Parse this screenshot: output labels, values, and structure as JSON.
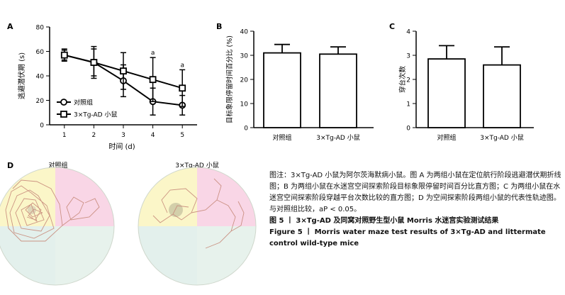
{
  "panels": {
    "a": "A",
    "b": "B",
    "c": "C",
    "d": "D"
  },
  "chart_data": [
    {
      "type": "line",
      "panel": "A",
      "xlabel": "时间 (d)",
      "ylabel": "逃避潜伏期 (s)",
      "x": [
        1,
        2,
        3,
        4,
        5
      ],
      "xlim": [
        0.5,
        5.5
      ],
      "ylim": [
        0,
        80
      ],
      "yticks": [
        0,
        20,
        40,
        60,
        80
      ],
      "series": [
        {
          "name": "对照组",
          "marker": "circle",
          "values": [
            57,
            51,
            36,
            19,
            16
          ],
          "error": [
            4,
            11,
            13,
            11,
            8
          ]
        },
        {
          "name": "3×Tg-AD 小鼠",
          "marker": "square",
          "values": [
            57,
            51,
            44,
            37,
            30
          ],
          "error": [
            5,
            13,
            15,
            18,
            15
          ]
        }
      ],
      "annotations": [
        {
          "x": 4,
          "text": "a"
        },
        {
          "x": 5,
          "text": "a"
        }
      ],
      "legend": "bottom-left",
      "grid": false
    },
    {
      "type": "bar",
      "panel": "B",
      "ylabel": "目标象限停留时间百分比 (%)",
      "categories": [
        "对照组",
        "3×Tg-AD 小鼠"
      ],
      "values": [
        31,
        30.5
      ],
      "error": [
        3.5,
        3
      ],
      "ylim": [
        0,
        40
      ],
      "yticks": [
        0,
        10,
        20,
        30,
        40
      ]
    },
    {
      "type": "bar",
      "panel": "C",
      "ylabel": "穿台次数",
      "categories": [
        "对照组",
        "3×Tg-AD 小鼠"
      ],
      "values": [
        2.85,
        2.6
      ],
      "error": [
        0.55,
        0.75
      ],
      "ylim": [
        0,
        4
      ],
      "yticks": [
        0,
        1,
        2,
        3,
        4
      ]
    }
  ],
  "track_titles": [
    "对照组",
    "3×Tg-AD 小鼠"
  ],
  "quadrant_colors": [
    "#fbf6c8",
    "#f9d6e6",
    "#e3f0ec",
    "#e7f2ec"
  ],
  "caption": {
    "notes": "图注：3×Tg-AD 小鼠为阿尔茨海默病小鼠。图 A 为两组小鼠在定位航行阶段逃避潜伏期折线图；B 为两组小鼠在水迷宫空间探索阶段目标象限停留时间百分比直方图；C 为两组小鼠在水迷宫空间探索阶段穿越平台次数比较的直方图；D 为空间探索阶段两组小鼠的代表性轨迹图。与对照组比较，aP < 0.05。",
    "title_cn": "图 5 丨 3×Tg-AD 及同窝对照野生型小鼠 Morris 水迷宫实验测试结果",
    "title_en": "Figure 5 丨 Morris water maze test results of 3×Tg-AD and littermate control wild-type mice"
  }
}
